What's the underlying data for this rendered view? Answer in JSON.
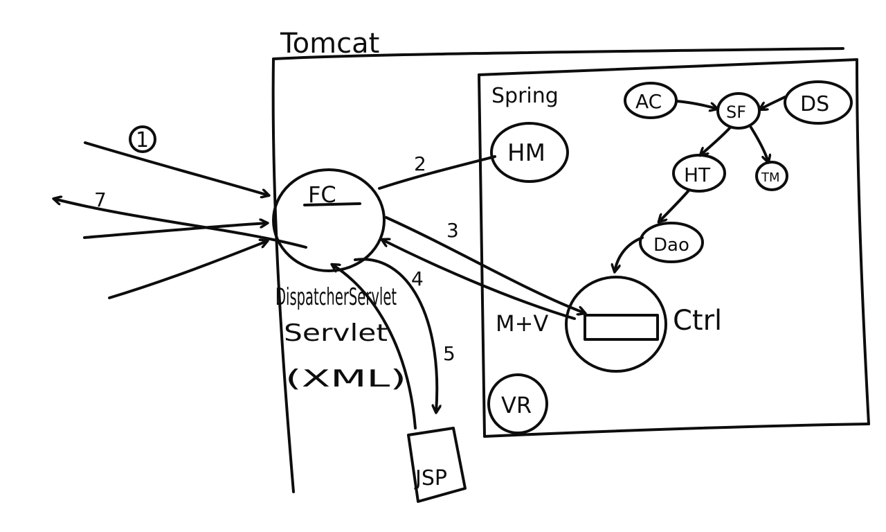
{
  "diagram": {
    "title": "Tomcat",
    "spring_label": "Spring",
    "front_controller": "FC",
    "dispatcher_line1": "DispatcherServlet",
    "dispatcher_line2": "Servlet",
    "dispatcher_line3": "(XML)",
    "handler_mapping": "HM",
    "controller": "Ctrl",
    "model_view": "M+V",
    "view_resolver": "VR",
    "jsp": "JSP",
    "application_context": "AC",
    "session_factory": "SF",
    "data_source": "DS",
    "hibernate_template": "HT",
    "transaction_manager": "TM",
    "dao": "Dao",
    "steps": {
      "s1": "1",
      "s2": "2",
      "s3": "3",
      "s4": "4",
      "s5": "5",
      "s7": "7"
    },
    "colors": {
      "ink": "#0d0d0d",
      "paper": "#ffffff"
    }
  }
}
